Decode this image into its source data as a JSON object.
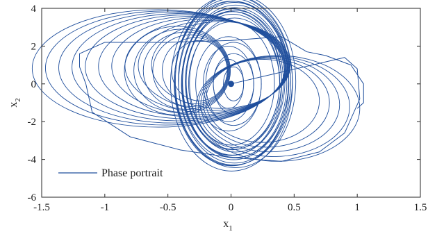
{
  "chart_data": {
    "type": "line",
    "xlabel": "x",
    "xlabel_sub": "1",
    "ylabel": "x",
    "ylabel_sub": "2",
    "xlim": [
      -1.5,
      1.5
    ],
    "ylim": [
      -6,
      4
    ],
    "xticks": [
      -1.5,
      -1,
      -0.5,
      0,
      0.5,
      1,
      1.5
    ],
    "xtick_labels": [
      "-1.5",
      "-1",
      "-0.5",
      "0",
      "0.5",
      "1",
      "1.5"
    ],
    "yticks": [
      -6,
      -4,
      -2,
      0,
      2,
      4
    ],
    "ytick_labels": [
      "-6",
      "-4",
      "-2",
      "0",
      "2",
      "4"
    ],
    "grid": false,
    "legend_position": "bottom-left",
    "series": [
      {
        "name": "Phase portrait",
        "color": "#1f4e9c",
        "x": [
          0,
          0.9,
          1.0,
          1.02,
          0.9,
          0.7,
          0.4,
          0.0,
          -0.4,
          -0.8,
          -1.1,
          -1.15,
          -1.2,
          -1.2,
          -1.0,
          -0.5,
          0.0,
          0.4,
          0.6,
          0.75,
          0.95,
          1.05,
          1.05,
          1.0
        ],
        "y": [
          0,
          1.4,
          0.8,
          -0.8,
          -2.6,
          -3.6,
          -4.1,
          -3.9,
          -3.5,
          -2.8,
          -1.5,
          0.0,
          0.9,
          1.6,
          2.2,
          2.2,
          2.3,
          2.5,
          1.7,
          1.5,
          1.0,
          0.0,
          -1.0,
          -1.3
        ]
      }
    ]
  }
}
